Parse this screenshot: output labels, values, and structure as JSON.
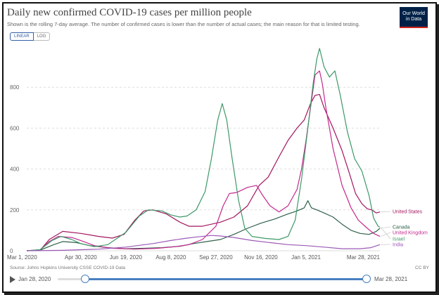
{
  "header": {
    "title": "Daily new confirmed COVID-19 cases per million people",
    "subtitle": "Shown is the rolling 7-day average. The number of confirmed cases is lower than the number of actual cases; the main reason for that is limited testing.",
    "logo_line1": "Our World",
    "logo_line2": "in Data"
  },
  "scale_toggle": {
    "linear_label": "LINEAR",
    "log_label": "LOG"
  },
  "footer": {
    "source": "Source: Johns Hopkins University CSSE COVID-19 Data",
    "license": "CC BY"
  },
  "timeline": {
    "start_label": "Jan 28, 2020",
    "end_label": "Mar 28, 2021"
  },
  "chart_data": {
    "type": "line",
    "title": "Daily new confirmed COVID-19 cases per million people",
    "ylim": [
      0,
      1000
    ],
    "yticks": [
      0,
      200,
      400,
      600,
      800
    ],
    "xlim_days": [
      0,
      392
    ],
    "xticks": [
      {
        "label": "Mar 1, 2020",
        "day": 0
      },
      {
        "label": "Apr 30, 2020",
        "day": 60
      },
      {
        "label": "Jun 19, 2020",
        "day": 110
      },
      {
        "label": "Aug 8, 2020",
        "day": 160
      },
      {
        "label": "Sep 27, 2020",
        "day": 210
      },
      {
        "label": "Nov 16, 2020",
        "day": 260
      },
      {
        "label": "Jan 5, 2021",
        "day": 310
      },
      {
        "label": "Mar 28, 2021",
        "day": 392
      }
    ],
    "series": [
      {
        "name": "United States",
        "color": "#a2165f",
        "points": [
          [
            0,
            0
          ],
          [
            15,
            3
          ],
          [
            25,
            55
          ],
          [
            40,
            95
          ],
          [
            60,
            85
          ],
          [
            80,
            70
          ],
          [
            95,
            62
          ],
          [
            108,
            80
          ],
          [
            120,
            150
          ],
          [
            130,
            195
          ],
          [
            140,
            200
          ],
          [
            155,
            180
          ],
          [
            170,
            140
          ],
          [
            180,
            120
          ],
          [
            195,
            120
          ],
          [
            205,
            130
          ],
          [
            215,
            140
          ],
          [
            230,
            165
          ],
          [
            245,
            220
          ],
          [
            258,
            320
          ],
          [
            268,
            360
          ],
          [
            280,
            460
          ],
          [
            290,
            540
          ],
          [
            300,
            600
          ],
          [
            308,
            640
          ],
          [
            315,
            720
          ],
          [
            320,
            760
          ],
          [
            325,
            765
          ],
          [
            330,
            700
          ],
          [
            340,
            600
          ],
          [
            350,
            490
          ],
          [
            358,
            380
          ],
          [
            365,
            280
          ],
          [
            372,
            230
          ],
          [
            378,
            205
          ],
          [
            383,
            200
          ],
          [
            388,
            185
          ],
          [
            392,
            190
          ]
        ]
      },
      {
        "name": "Canada",
        "color": "#2f6149",
        "points": [
          [
            0,
            0
          ],
          [
            15,
            3
          ],
          [
            30,
            30
          ],
          [
            40,
            45
          ],
          [
            55,
            40
          ],
          [
            70,
            25
          ],
          [
            90,
            15
          ],
          [
            110,
            10
          ],
          [
            130,
            12
          ],
          [
            150,
            15
          ],
          [
            170,
            22
          ],
          [
            185,
            35
          ],
          [
            200,
            45
          ],
          [
            215,
            55
          ],
          [
            230,
            80
          ],
          [
            245,
            110
          ],
          [
            260,
            135
          ],
          [
            275,
            155
          ],
          [
            290,
            180
          ],
          [
            300,
            195
          ],
          [
            308,
            210
          ],
          [
            312,
            245
          ],
          [
            316,
            210
          ],
          [
            322,
            200
          ],
          [
            330,
            185
          ],
          [
            340,
            165
          ],
          [
            350,
            130
          ],
          [
            360,
            100
          ],
          [
            370,
            85
          ],
          [
            380,
            80
          ],
          [
            388,
            95
          ],
          [
            392,
            110
          ]
        ]
      },
      {
        "name": "United Kingdom",
        "color": "#c4298f",
        "points": [
          [
            0,
            0
          ],
          [
            15,
            5
          ],
          [
            25,
            45
          ],
          [
            35,
            70
          ],
          [
            50,
            65
          ],
          [
            60,
            50
          ],
          [
            75,
            25
          ],
          [
            95,
            12
          ],
          [
            120,
            8
          ],
          [
            145,
            12
          ],
          [
            165,
            20
          ],
          [
            180,
            30
          ],
          [
            195,
            55
          ],
          [
            210,
            120
          ],
          [
            218,
            220
          ],
          [
            225,
            280
          ],
          [
            233,
            285
          ],
          [
            245,
            310
          ],
          [
            255,
            320
          ],
          [
            262,
            270
          ],
          [
            270,
            220
          ],
          [
            280,
            190
          ],
          [
            290,
            220
          ],
          [
            300,
            300
          ],
          [
            305,
            400
          ],
          [
            310,
            540
          ],
          [
            315,
            700
          ],
          [
            320,
            860
          ],
          [
            325,
            880
          ],
          [
            328,
            820
          ],
          [
            332,
            700
          ],
          [
            340,
            500
          ],
          [
            350,
            320
          ],
          [
            360,
            210
          ],
          [
            368,
            150
          ],
          [
            378,
            110
          ],
          [
            385,
            85
          ],
          [
            392,
            70
          ]
        ]
      },
      {
        "name": "Israel",
        "color": "#3c9966",
        "points": [
          [
            0,
            0
          ],
          [
            15,
            5
          ],
          [
            28,
            50
          ],
          [
            38,
            70
          ],
          [
            50,
            55
          ],
          [
            60,
            35
          ],
          [
            75,
            20
          ],
          [
            90,
            30
          ],
          [
            110,
            90
          ],
          [
            125,
            170
          ],
          [
            135,
            200
          ],
          [
            150,
            195
          ],
          [
            160,
            175
          ],
          [
            170,
            165
          ],
          [
            178,
            170
          ],
          [
            188,
            200
          ],
          [
            198,
            290
          ],
          [
            205,
            450
          ],
          [
            212,
            640
          ],
          [
            217,
            720
          ],
          [
            222,
            640
          ],
          [
            228,
            450
          ],
          [
            235,
            250
          ],
          [
            242,
            110
          ],
          [
            250,
            70
          ],
          [
            265,
            60
          ],
          [
            280,
            55
          ],
          [
            290,
            70
          ],
          [
            298,
            150
          ],
          [
            305,
            350
          ],
          [
            312,
            600
          ],
          [
            318,
            820
          ],
          [
            322,
            940
          ],
          [
            325,
            990
          ],
          [
            330,
            900
          ],
          [
            336,
            850
          ],
          [
            342,
            880
          ],
          [
            348,
            760
          ],
          [
            356,
            580
          ],
          [
            364,
            450
          ],
          [
            372,
            390
          ],
          [
            380,
            270
          ],
          [
            385,
            160
          ],
          [
            390,
            120
          ],
          [
            392,
            115
          ]
        ]
      },
      {
        "name": "India",
        "color": "#9b59b6",
        "points": [
          [
            0,
            0
          ],
          [
            40,
            2
          ],
          [
            80,
            8
          ],
          [
            110,
            18
          ],
          [
            140,
            35
          ],
          [
            160,
            50
          ],
          [
            175,
            60
          ],
          [
            190,
            68
          ],
          [
            205,
            75
          ],
          [
            215,
            72
          ],
          [
            230,
            65
          ],
          [
            250,
            50
          ],
          [
            270,
            40
          ],
          [
            290,
            30
          ],
          [
            310,
            25
          ],
          [
            330,
            18
          ],
          [
            350,
            10
          ],
          [
            370,
            10
          ],
          [
            382,
            15
          ],
          [
            392,
            30
          ]
        ]
      }
    ],
    "legend_placement": "right, at line ends"
  }
}
